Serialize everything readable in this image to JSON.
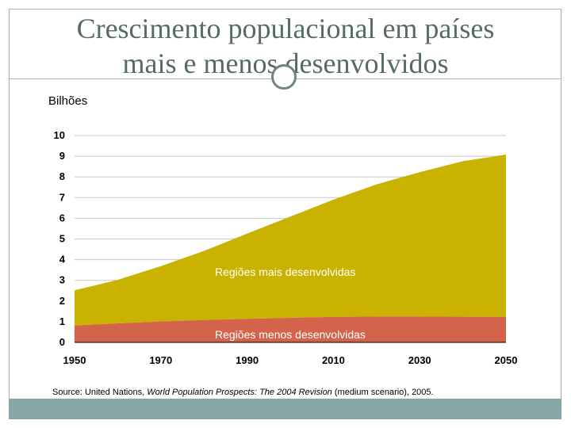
{
  "title_line1": "Crescimento populacional em países",
  "title_line2": "mais e menos desenvolvidos",
  "unit_label": "Bilhões",
  "source_prefix": "Source: United Nations, ",
  "source_title": "World Population Prospects: The 2004 Revision",
  "source_suffix": " (medium scenario), 2005.",
  "colors": {
    "upper_area": "#c9b200",
    "lower_area": "#d4634c",
    "frame": "#9cb3b1",
    "footer": "#87a7a6",
    "title": "#566b69"
  },
  "chart_data": {
    "type": "area",
    "stacked": true,
    "x": [
      1950,
      1960,
      1970,
      1980,
      1990,
      2000,
      2010,
      2020,
      2030,
      2040,
      2050
    ],
    "xticks": [
      "1950",
      "1970",
      "1990",
      "2010",
      "2030",
      "2050"
    ],
    "yticks": [
      "0",
      "1",
      "2",
      "3",
      "4",
      "5",
      "6",
      "7",
      "8",
      "9",
      "10"
    ],
    "ylim": [
      0,
      10
    ],
    "xlim": [
      1950,
      2050
    ],
    "grid": true,
    "series": [
      {
        "name": "Regiões menos desenvolvidas",
        "values": [
          0.82,
          0.92,
          1.01,
          1.08,
          1.14,
          1.19,
          1.23,
          1.25,
          1.25,
          1.24,
          1.23
        ]
      },
      {
        "name": "Regiões mais desenvolvidas",
        "values": [
          1.7,
          2.1,
          2.68,
          3.34,
          4.12,
          4.89,
          5.67,
          6.39,
          6.98,
          7.52,
          7.85
        ]
      }
    ]
  }
}
